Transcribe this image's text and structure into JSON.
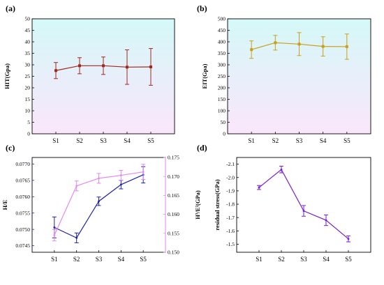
{
  "colors": {
    "a": "#a0281c",
    "b": "#c8a018",
    "c_left": "#1c22a8",
    "c_right": "#e388f0",
    "d": "#7a1fc8",
    "bg_top": "#d4f8f8",
    "bg_bottom": "#fbe6fb"
  },
  "chart_data": [
    {
      "panel": "(a)",
      "type": "line",
      "categories": [
        "S1",
        "S2",
        "S3",
        "S4",
        "S5"
      ],
      "ylabel": "HIT(Gpa)",
      "ylim": [
        0,
        50
      ],
      "yticks": [
        0,
        5,
        10,
        15,
        20,
        25,
        30,
        35,
        40,
        45,
        50
      ],
      "series": [
        {
          "values": [
            27.5,
            29.6,
            29.6,
            29.0,
            29.1
          ],
          "errors": [
            3.5,
            3.5,
            3.8,
            7.5,
            8.0
          ]
        }
      ],
      "background": "gradient"
    },
    {
      "panel": "(b)",
      "type": "line",
      "categories": [
        "S1",
        "S2",
        "S3",
        "S4",
        "S5"
      ],
      "ylabel": "EIT(Gpa)",
      "ylim": [
        0,
        500
      ],
      "yticks": [
        0,
        50,
        100,
        150,
        200,
        250,
        300,
        350,
        400,
        450,
        500
      ],
      "series": [
        {
          "values": [
            366,
            396,
            390,
            380,
            379
          ],
          "errors": [
            38,
            32,
            50,
            42,
            55
          ]
        }
      ],
      "background": "gradient"
    },
    {
      "panel": "(c)",
      "type": "line",
      "categories": [
        "S1",
        "S2",
        "S3",
        "S4",
        "S5"
      ],
      "ylabel": "H/E",
      "ylabel_right": "H³/E²(GPa)",
      "ylim": [
        0.0743,
        0.0772
      ],
      "yticks": [
        "0.0745",
        "0.0750",
        "0.0755",
        "0.0760",
        "0.0765",
        "0.0770"
      ],
      "ylim_right": [
        0.15,
        0.175
      ],
      "yticks_right": [
        "0.150",
        "0.155",
        "0.160",
        "0.165",
        "0.170",
        "0.175"
      ],
      "series": [
        {
          "axis": "left",
          "values": [
            0.07506,
            0.07474,
            0.07586,
            0.07637,
            0.07667
          ],
          "errors": [
            0.00032,
            0.00015,
            0.00013,
            0.00013,
            0.00025
          ]
        },
        {
          "axis": "right",
          "values": [
            0.1545,
            0.1675,
            0.1695,
            0.1703,
            0.1712
          ],
          "errors": [
            0.0015,
            0.0013,
            0.0013,
            0.0013,
            0.002
          ]
        }
      ]
    },
    {
      "panel": "(d)",
      "type": "line",
      "categories": [
        "S1",
        "S2",
        "S3",
        "S4",
        "S5"
      ],
      "ylabel": "residual stress(GPa)",
      "ylim": [
        -2.15,
        -1.44
      ],
      "yticks": [
        "-2.1",
        "-2.0",
        "-1.9",
        "-1.8",
        "-1.7",
        "-1.6",
        "-1.5"
      ],
      "y_inverted": true,
      "series": [
        {
          "values": [
            -1.925,
            -2.06,
            -1.75,
            -1.68,
            -1.54
          ],
          "errors": [
            0.015,
            0.025,
            0.04,
            0.04,
            0.022
          ]
        }
      ]
    }
  ]
}
